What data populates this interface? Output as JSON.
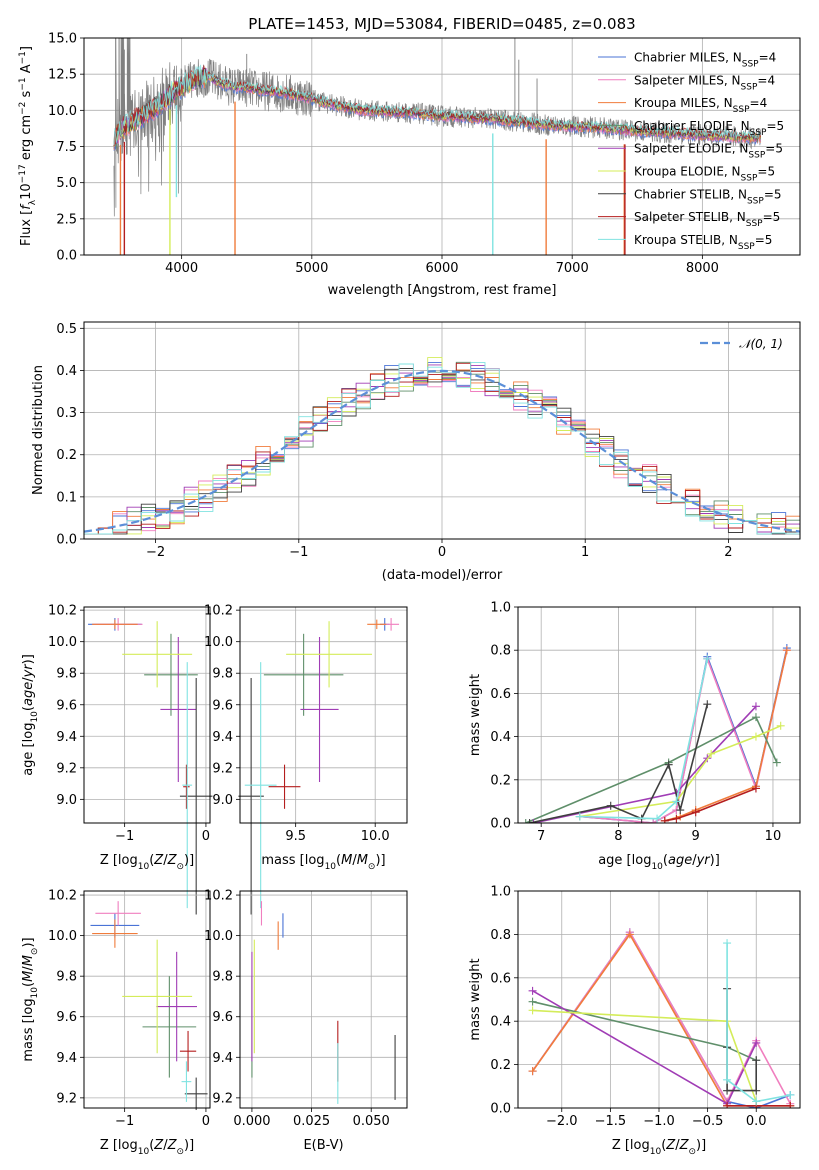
{
  "colors": {
    "chabrier_miles": "#4a73d6",
    "salpeter_miles": "#f07fbf",
    "kroupa_miles": "#f07c3c",
    "chabrier_elodie": "#5f8f6a",
    "salpeter_elodie": "#a03cb5",
    "kroupa_elodie": "#d4ec5a",
    "chabrier_stelib": "#3f3f3f",
    "salpeter_stelib": "#b41e1e",
    "kroupa_stelib": "#80e3e1",
    "normal": "#5b8fd8",
    "data": "#808080"
  },
  "chart_data": [
    {
      "type": "line",
      "title": "PLATE=1453, MJD=53084, FIBERID=0485, z=0.083",
      "xlabel": "wavelength [Angstrom, rest frame]",
      "ylabel": "Flux [f_λ 10^-17 erg cm^-2 s^-1 A^-1]",
      "xlim": [
        3250,
        8750
      ],
      "ylim": [
        0,
        15
      ],
      "xticks": [
        4000,
        5000,
        6000,
        7000,
        8000
      ],
      "yticks": [
        0.0,
        2.5,
        5.0,
        7.5,
        10.0,
        12.5,
        15.0
      ],
      "legend_position": "top-right",
      "legend": [
        {
          "key": "chabrier_miles",
          "base": "Chabrier MILES, N",
          "sub": "SSP",
          "suffix": "=4"
        },
        {
          "key": "salpeter_miles",
          "base": "Salpeter MILES, N",
          "sub": "SSP",
          "suffix": "=4"
        },
        {
          "key": "kroupa_miles",
          "base": "Kroupa MILES, N",
          "sub": "SSP",
          "suffix": "=4"
        },
        {
          "key": "chabrier_elodie",
          "base": "Chabrier ELODIE, N",
          "sub": "SSP",
          "suffix": "=5"
        },
        {
          "key": "salpeter_elodie",
          "base": "Salpeter ELODIE, N",
          "sub": "SSP",
          "suffix": "=5"
        },
        {
          "key": "kroupa_elodie",
          "base": "Kroupa ELODIE, N",
          "sub": "SSP",
          "suffix": "=5"
        },
        {
          "key": "chabrier_stelib",
          "base": "Chabrier STELIB, N",
          "sub": "SSP",
          "suffix": "=5"
        },
        {
          "key": "salpeter_stelib",
          "base": "Salpeter STELIB, N",
          "sub": "SSP",
          "suffix": "=5"
        },
        {
          "key": "kroupa_stelib",
          "base": "Kroupa STELIB, N",
          "sub": "SSP",
          "suffix": "=5"
        }
      ],
      "continuum": [
        [
          3500,
          8.4
        ],
        [
          3600,
          9.1
        ],
        [
          3700,
          9.6
        ],
        [
          3800,
          10.2
        ],
        [
          3900,
          11.0
        ],
        [
          4000,
          11.6
        ],
        [
          4100,
          12.2
        ],
        [
          4200,
          12.3
        ],
        [
          4300,
          11.9
        ],
        [
          4400,
          11.6
        ],
        [
          4500,
          11.6
        ],
        [
          4600,
          11.4
        ],
        [
          4800,
          11.2
        ],
        [
          5000,
          10.8
        ],
        [
          5200,
          10.3
        ],
        [
          5400,
          10.0
        ],
        [
          5600,
          9.9
        ],
        [
          5800,
          9.8
        ],
        [
          6000,
          9.6
        ],
        [
          6200,
          9.5
        ],
        [
          6400,
          9.4
        ],
        [
          6600,
          9.2
        ],
        [
          6800,
          9.0
        ],
        [
          7000,
          8.9
        ],
        [
          7200,
          8.8
        ],
        [
          7400,
          8.65
        ],
        [
          7600,
          8.5
        ],
        [
          7800,
          8.4
        ],
        [
          8000,
          8.3
        ],
        [
          8200,
          8.2
        ],
        [
          8400,
          8.1
        ]
      ],
      "data_spikes": [
        [
          3520,
          15.0
        ],
        [
          3560,
          14.2
        ],
        [
          4500,
          13.9
        ],
        [
          6560,
          15.0
        ],
        [
          6590,
          13.5
        ],
        [
          6730,
          12.2
        ]
      ],
      "model_dips": [
        {
          "x": 3530,
          "y": 0.0,
          "key": "kroupa_miles"
        },
        {
          "x": 3560,
          "y": 0.0,
          "key": "salpeter_stelib"
        },
        {
          "x": 3910,
          "y": 0.0,
          "key": "kroupa_elodie"
        },
        {
          "x": 3960,
          "y": 4.0,
          "key": "kroupa_stelib"
        },
        {
          "x": 4410,
          "y": 0.0,
          "key": "kroupa_miles"
        },
        {
          "x": 6390,
          "y": 0.0,
          "key": "kroupa_stelib"
        },
        {
          "x": 6800,
          "y": 0.0,
          "key": "kroupa_miles"
        },
        {
          "x": 7400,
          "y": 0.0,
          "key": "kroupa_miles"
        },
        {
          "x": 7405,
          "y": 0.0,
          "key": "salpeter_stelib"
        }
      ]
    },
    {
      "type": "histogram",
      "xlabel": "(data-model)/error",
      "ylabel": "Normed distribution",
      "xlim": [
        -2.5,
        2.5
      ],
      "ylim": [
        0,
        0.515
      ],
      "xticks": [
        -2,
        -1,
        0,
        1,
        2
      ],
      "yticks": [
        0.0,
        0.1,
        0.2,
        0.3,
        0.4,
        0.5
      ],
      "bin_start": -2.5,
      "bin_width": 0.1,
      "legend_position": "top-right",
      "legend": [
        {
          "key": "normal",
          "label": "𝒩(0, 1)"
        }
      ]
    },
    {
      "type": "scatter",
      "xlabel": "Z [log10(Z/Z⊙)]",
      "ylabel": "age [log10(age/yr)]",
      "xlim": [
        -1.5,
        0.05
      ],
      "ylim": [
        8.85,
        10.22
      ],
      "xticks": [
        -1,
        0
      ],
      "yticks": [
        9.0,
        9.2,
        9.4,
        9.6,
        9.8,
        10.0,
        10.2
      ],
      "points": [
        {
          "key": "chabrier_miles",
          "x": -1.12,
          "y": 10.11,
          "xerr": 0.33,
          "yerr": 0.04
        },
        {
          "key": "salpeter_miles",
          "x": -1.08,
          "y": 10.11,
          "xerr": 0.3,
          "yerr": 0.04
        },
        {
          "key": "kroupa_miles",
          "x": -1.12,
          "y": 10.11,
          "xerr": 0.28,
          "yerr": 0.03
        },
        {
          "key": "chabrier_elodie",
          "x": -0.43,
          "y": 9.79,
          "xerr": 0.33,
          "yerr": 0.26
        },
        {
          "key": "salpeter_elodie",
          "x": -0.34,
          "y": 9.57,
          "xerr": 0.22,
          "yerr": 0.46
        },
        {
          "key": "kroupa_elodie",
          "x": -0.6,
          "y": 9.92,
          "xerr": 0.43,
          "yerr": 0.21
        },
        {
          "key": "chabrier_stelib",
          "x": -0.12,
          "y": 9.02,
          "xerr": 0.2,
          "yerr": 0.75
        },
        {
          "key": "salpeter_stelib",
          "x": -0.24,
          "y": 9.08,
          "xerr": 0.04,
          "yerr": 0.14
        },
        {
          "key": "kroupa_stelib",
          "x": -0.23,
          "y": 9.09,
          "xerr": 0.06,
          "yerr": 0.78
        }
      ]
    },
    {
      "type": "scatter",
      "xlabel": "mass [log10(M/M⊙)]",
      "ylabel": "",
      "xlim": [
        9.15,
        10.2
      ],
      "ylim": [
        8.85,
        10.22
      ],
      "xticks": [
        9.5,
        10.0
      ],
      "yticks": [
        9.0,
        9.2,
        9.4,
        9.6,
        9.8,
        10.0,
        10.2
      ],
      "points": [
        {
          "key": "chabrier_miles",
          "x": 10.06,
          "y": 10.11,
          "xerr": 0.03,
          "yerr": 0.04
        },
        {
          "key": "salpeter_miles",
          "x": 10.1,
          "y": 10.11,
          "xerr": 0.05,
          "yerr": 0.04
        },
        {
          "key": "kroupa_miles",
          "x": 10.01,
          "y": 10.11,
          "xerr": 0.06,
          "yerr": 0.03
        },
        {
          "key": "chabrier_elodie",
          "x": 9.55,
          "y": 9.79,
          "xerr": 0.25,
          "yerr": 0.26
        },
        {
          "key": "salpeter_elodie",
          "x": 9.65,
          "y": 9.57,
          "xerr": 0.12,
          "yerr": 0.46
        },
        {
          "key": "kroupa_elodie",
          "x": 9.71,
          "y": 9.92,
          "xerr": 0.27,
          "yerr": 0.21
        },
        {
          "key": "chabrier_stelib",
          "x": 9.22,
          "y": 9.02,
          "xerr": 0.08,
          "yerr": 0.75
        },
        {
          "key": "salpeter_stelib",
          "x": 9.43,
          "y": 9.08,
          "xerr": 0.1,
          "yerr": 0.14
        },
        {
          "key": "kroupa_stelib",
          "x": 9.28,
          "y": 9.09,
          "xerr": 0.1,
          "yerr": 0.78
        }
      ]
    },
    {
      "type": "line",
      "xlabel": "age [log10(age/yr)]",
      "ylabel": "mass weight",
      "xlim": [
        6.7,
        10.35
      ],
      "ylim": [
        0,
        1
      ],
      "xticks": [
        7,
        8,
        9,
        10
      ],
      "yticks": [
        0.0,
        0.2,
        0.4,
        0.6,
        0.8,
        1.0
      ],
      "series": [
        {
          "key": "chabrier_miles",
          "x": [
            7.5,
            8.45,
            8.75,
            9.15,
            9.78,
            10.18
          ],
          "y": [
            0.03,
            0.0,
            0.06,
            0.77,
            0.17,
            0.81
          ]
        },
        {
          "key": "salpeter_miles",
          "x": [
            7.5,
            8.45,
            8.75,
            9.15,
            9.78,
            10.18
          ],
          "y": [
            0.03,
            0.0,
            0.06,
            0.76,
            0.16,
            0.8
          ]
        },
        {
          "key": "kroupa_miles",
          "x": [
            8.6,
            8.8,
            9.0,
            9.78,
            10.18
          ],
          "y": [
            0.01,
            0.03,
            0.06,
            0.17,
            0.8
          ]
        },
        {
          "key": "chabrier_elodie",
          "x": [
            6.8,
            8.65,
            9.78,
            10.05
          ],
          "y": [
            0.0,
            0.28,
            0.49,
            0.28
          ]
        },
        {
          "key": "salpeter_elodie",
          "x": [
            6.9,
            8.75,
            9.15,
            9.78
          ],
          "y": [
            0.0,
            0.14,
            0.3,
            0.54
          ]
        },
        {
          "key": "kroupa_elodie",
          "x": [
            7.5,
            8.75,
            9.2,
            9.78,
            10.1
          ],
          "y": [
            0.03,
            0.1,
            0.32,
            0.4,
            0.45
          ]
        },
        {
          "key": "chabrier_stelib",
          "x": [
            6.85,
            7.9,
            8.3,
            8.65,
            8.8,
            9.15
          ],
          "y": [
            0.0,
            0.08,
            0.02,
            0.27,
            0.06,
            0.55
          ]
        },
        {
          "key": "salpeter_stelib",
          "x": [
            8.6,
            8.75,
            9.0,
            9.78
          ],
          "y": [
            0.01,
            0.02,
            0.05,
            0.16
          ]
        },
        {
          "key": "kroupa_stelib",
          "x": [
            7.5,
            8.5,
            8.75,
            9.15
          ],
          "y": [
            0.03,
            0.02,
            0.1,
            0.76
          ]
        }
      ]
    },
    {
      "type": "scatter",
      "xlabel": "Z [log10(Z/Z⊙)]",
      "ylabel": "mass [log10(M/M⊙)]",
      "xlim": [
        -1.5,
        0.05
      ],
      "ylim": [
        9.15,
        10.22
      ],
      "xticks": [
        -1,
        0
      ],
      "yticks": [
        9.2,
        9.4,
        9.6,
        9.8,
        10.0,
        10.2
      ],
      "points": [
        {
          "key": "chabrier_miles",
          "x": -1.12,
          "y": 10.05,
          "xerr": 0.3,
          "yerr": 0.06
        },
        {
          "key": "salpeter_miles",
          "x": -1.08,
          "y": 10.11,
          "xerr": 0.28,
          "yerr": 0.06
        },
        {
          "key": "kroupa_miles",
          "x": -1.12,
          "y": 10.01,
          "xerr": 0.28,
          "yerr": 0.07
        },
        {
          "key": "chabrier_elodie",
          "x": -0.45,
          "y": 9.55,
          "xerr": 0.33,
          "yerr": 0.25
        },
        {
          "key": "salpeter_elodie",
          "x": -0.36,
          "y": 9.65,
          "xerr": 0.25,
          "yerr": 0.27
        },
        {
          "key": "kroupa_elodie",
          "x": -0.6,
          "y": 9.7,
          "xerr": 0.43,
          "yerr": 0.28
        },
        {
          "key": "chabrier_stelib",
          "x": -0.12,
          "y": 9.22,
          "xerr": 0.14,
          "yerr": 0.08
        },
        {
          "key": "salpeter_stelib",
          "x": -0.22,
          "y": 9.43,
          "xerr": 0.1,
          "yerr": 0.1
        },
        {
          "key": "kroupa_stelib",
          "x": -0.24,
          "y": 9.28,
          "xerr": 0.06,
          "yerr": 0.1
        }
      ]
    },
    {
      "type": "scatter",
      "xlabel": "E(B-V)",
      "ylabel": "",
      "xlim": [
        -0.005,
        0.065
      ],
      "ylim": [
        9.15,
        10.22
      ],
      "xticks": [
        0.0,
        0.025,
        0.05
      ],
      "yticks": [
        9.2,
        9.4,
        9.6,
        9.8,
        10.0,
        10.2
      ],
      "points": [
        {
          "key": "chabrier_miles",
          "x": 0.013,
          "y": 10.05,
          "xerr": 0.0,
          "yerr": 0.06
        },
        {
          "key": "salpeter_miles",
          "x": 0.004,
          "y": 10.11,
          "xerr": 0.0,
          "yerr": 0.06
        },
        {
          "key": "kroupa_miles",
          "x": 0.011,
          "y": 10.0,
          "xerr": 0.0,
          "yerr": 0.07
        },
        {
          "key": "chabrier_elodie",
          "x": 0.0,
          "y": 9.55,
          "xerr": 0.0,
          "yerr": 0.25
        },
        {
          "key": "salpeter_elodie",
          "x": 0.0,
          "y": 9.65,
          "xerr": 0.0,
          "yerr": 0.27
        },
        {
          "key": "kroupa_elodie",
          "x": 0.001,
          "y": 9.7,
          "xerr": 0.0,
          "yerr": 0.28
        },
        {
          "key": "chabrier_stelib",
          "x": 0.06,
          "y": 9.35,
          "xerr": 0.0,
          "yerr": 0.16
        },
        {
          "key": "salpeter_stelib",
          "x": 0.036,
          "y": 9.43,
          "xerr": 0.0,
          "yerr": 0.15
        },
        {
          "key": "kroupa_stelib",
          "x": 0.036,
          "y": 9.32,
          "xerr": 0.0,
          "yerr": 0.15
        }
      ]
    },
    {
      "type": "line",
      "xlabel": "Z [log10(Z/Z⊙)]",
      "ylabel": "mass weight",
      "xlim": [
        -2.45,
        0.45
      ],
      "ylim": [
        0,
        1
      ],
      "xticks": [
        -2.0,
        -1.5,
        -1.0,
        -0.5,
        0.0
      ],
      "yticks": [
        0.0,
        0.2,
        0.4,
        0.6,
        0.8,
        1.0
      ],
      "series": [
        {
          "key": "chabrier_miles",
          "x": [
            -2.3,
            -1.3,
            -0.3,
            0.0,
            0.35
          ],
          "y": [
            0.17,
            0.81,
            0.03,
            0.0,
            0.06
          ]
        },
        {
          "key": "salpeter_miles",
          "x": [
            -2.3,
            -1.3,
            -0.3,
            0.0,
            0.35
          ],
          "y": [
            0.17,
            0.81,
            0.03,
            0.31,
            0.02
          ]
        },
        {
          "key": "kroupa_miles",
          "x": [
            -2.3,
            -1.3,
            -0.3,
            0.0,
            0.35
          ],
          "y": [
            0.17,
            0.8,
            0.01,
            0.01,
            0.01
          ]
        },
        {
          "key": "chabrier_elodie",
          "x": [
            -2.3,
            -0.3,
            0.0
          ],
          "y": [
            0.49,
            0.28,
            0.22
          ]
        },
        {
          "key": "salpeter_elodie",
          "x": [
            -2.3,
            -0.3,
            0.0
          ],
          "y": [
            0.54,
            0.02,
            0.3
          ]
        },
        {
          "key": "kroupa_elodie",
          "x": [
            -2.3,
            -0.3,
            0.0
          ],
          "y": [
            0.45,
            0.4,
            0.03
          ]
        },
        {
          "key": "chabrier_stelib",
          "x": [
            -0.3,
            -0.3,
            -0.3,
            0.0,
            0.0
          ],
          "y": [
            0.55,
            0.28,
            0.08,
            0.08,
            0.22
          ]
        },
        {
          "key": "salpeter_stelib",
          "x": [
            -0.3,
            0.0,
            0.35
          ],
          "y": [
            0.01,
            0.01,
            0.01
          ]
        },
        {
          "key": "kroupa_stelib",
          "x": [
            -0.3,
            -0.3,
            0.0,
            0.35
          ],
          "y": [
            0.76,
            0.13,
            0.03,
            0.06
          ]
        }
      ]
    }
  ]
}
